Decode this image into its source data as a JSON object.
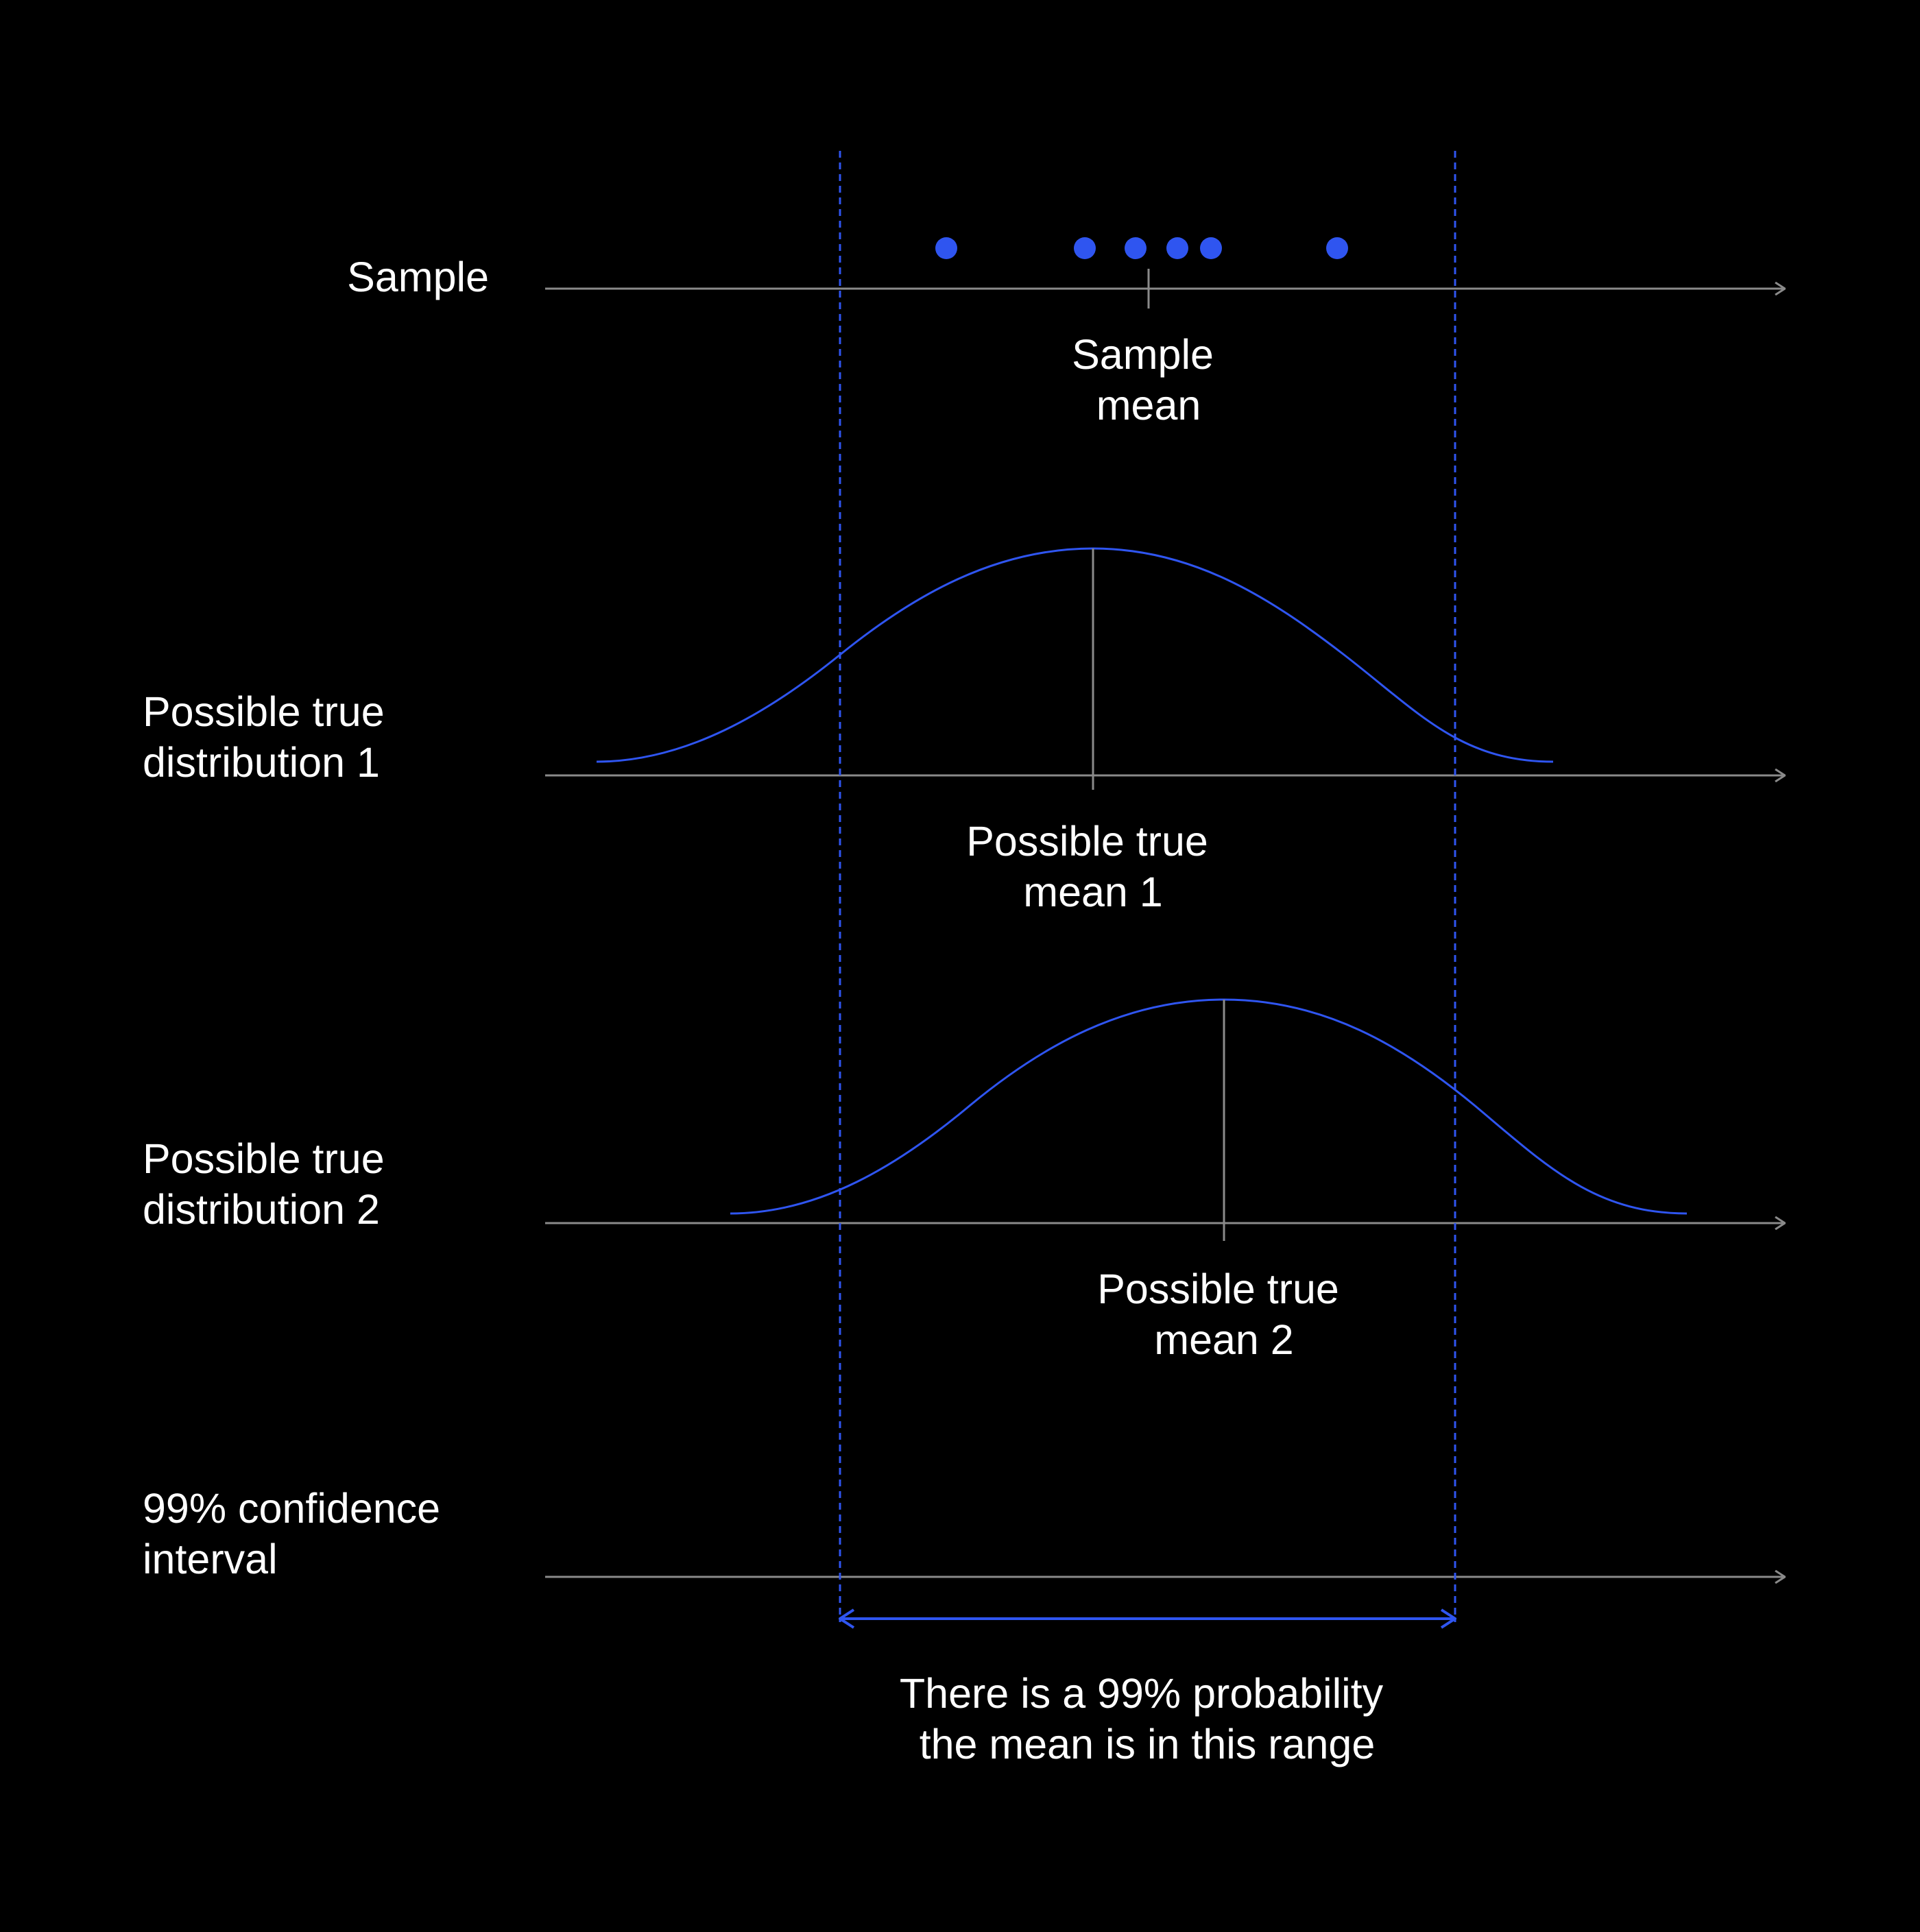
{
  "colors": {
    "background": "#000000",
    "accent": "#2f55f0",
    "axis": "#8a8a8a",
    "text": "#ffffff"
  },
  "rows": {
    "sample": {
      "label_lines": [
        "Sample"
      ],
      "mean_label_lines": [
        "Sample",
        "mean"
      ]
    },
    "distribution_1": {
      "label_lines": [
        "Possible true",
        "distribution 1"
      ],
      "mean_label_lines": [
        "Possible true",
        "mean 1"
      ]
    },
    "distribution_2": {
      "label_lines": [
        "Possible true",
        "distribution 2"
      ],
      "mean_label_lines": [
        "Possible true",
        "mean 2"
      ]
    },
    "confidence_interval": {
      "label_lines": [
        "99% confidence",
        "interval"
      ],
      "caption_lines": [
        "There is a 99% probability",
        "the mean is in this range"
      ]
    }
  }
}
